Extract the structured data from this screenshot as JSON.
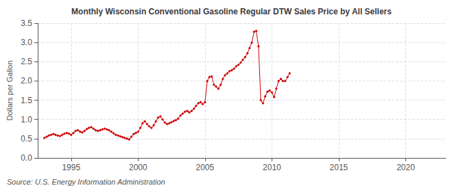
{
  "chart_data": {
    "type": "line",
    "title": "Monthly Wisconsin Conventional Gasoline Regular DTW Sales Price by All Sellers",
    "ylabel": "Dollars per Gallon",
    "annotations": [
      "Source: U.S. Energy Information Administration"
    ],
    "color": "#cc0000",
    "marker": "diamond",
    "grid": true,
    "xlim": [
      1992.5,
      2023.0
    ],
    "xticks": [
      1995,
      2000,
      2005,
      2010,
      2015,
      2020
    ],
    "ylim": [
      0.0,
      3.5
    ],
    "yticks": [
      {
        "value": 0.0,
        "label": "0.0"
      },
      0.5,
      {
        "value": 1.0,
        "label": "1.0"
      },
      1.5,
      {
        "value": 2.0,
        "label": "2.0"
      },
      2.5,
      {
        "value": 3.0,
        "label": "3.0"
      },
      3.5
    ],
    "x": [
      1993.0,
      1993.17,
      1993.33,
      1993.5,
      1993.67,
      1993.83,
      1994.0,
      1994.17,
      1994.33,
      1994.5,
      1994.67,
      1994.83,
      1995.0,
      1995.17,
      1995.33,
      1995.5,
      1995.67,
      1995.83,
      1996.0,
      1996.17,
      1996.33,
      1996.5,
      1996.67,
      1996.83,
      1997.0,
      1997.17,
      1997.33,
      1997.5,
      1997.67,
      1997.83,
      1998.0,
      1998.17,
      1998.33,
      1998.5,
      1998.67,
      1998.83,
      1999.0,
      1999.17,
      1999.33,
      1999.5,
      1999.67,
      1999.83,
      2000.0,
      2000.17,
      2000.33,
      2000.5,
      2000.67,
      2000.83,
      2001.0,
      2001.17,
      2001.33,
      2001.5,
      2001.67,
      2001.83,
      2002.0,
      2002.17,
      2002.33,
      2002.5,
      2002.67,
      2002.83,
      2003.0,
      2003.17,
      2003.33,
      2003.5,
      2003.67,
      2003.83,
      2004.0,
      2004.17,
      2004.33,
      2004.5,
      2004.67,
      2004.83,
      2005.0,
      2005.17,
      2005.33,
      2005.5,
      2005.67,
      2005.83,
      2006.0,
      2006.17,
      2006.33,
      2006.5,
      2006.67,
      2006.83,
      2007.0,
      2007.17,
      2007.33,
      2007.5,
      2007.67,
      2007.83,
      2008.0,
      2008.17,
      2008.33,
      2008.5,
      2008.67,
      2008.83,
      2009.0,
      2009.17,
      2009.33,
      2009.5,
      2009.67,
      2009.83,
      2010.0,
      2010.17,
      2010.33,
      2010.5,
      2010.67,
      2010.83,
      2011.0,
      2011.17,
      2011.33
    ],
    "values": [
      0.52,
      0.55,
      0.58,
      0.6,
      0.62,
      0.6,
      0.58,
      0.57,
      0.6,
      0.63,
      0.65,
      0.63,
      0.6,
      0.65,
      0.7,
      0.72,
      0.68,
      0.66,
      0.7,
      0.75,
      0.78,
      0.8,
      0.76,
      0.72,
      0.7,
      0.72,
      0.74,
      0.76,
      0.74,
      0.72,
      0.68,
      0.64,
      0.6,
      0.58,
      0.56,
      0.54,
      0.52,
      0.5,
      0.48,
      0.55,
      0.62,
      0.65,
      0.68,
      0.78,
      0.9,
      0.95,
      0.88,
      0.82,
      0.78,
      0.85,
      0.95,
      1.05,
      1.08,
      1.0,
      0.92,
      0.88,
      0.9,
      0.93,
      0.96,
      0.98,
      1.02,
      1.1,
      1.15,
      1.2,
      1.22,
      1.18,
      1.22,
      1.28,
      1.35,
      1.42,
      1.45,
      1.4,
      1.45,
      2.0,
      2.1,
      2.12,
      1.9,
      1.85,
      1.8,
      1.9,
      2.05,
      2.15,
      2.2,
      2.25,
      2.28,
      2.32,
      2.38,
      2.42,
      2.48,
      2.55,
      2.62,
      2.72,
      2.85,
      3.0,
      3.28,
      3.3,
      2.9,
      1.5,
      1.42,
      1.6,
      1.72,
      1.75,
      1.7,
      1.58,
      1.8,
      2.0,
      2.05,
      2.0,
      2.0,
      2.1,
      2.2
    ]
  }
}
